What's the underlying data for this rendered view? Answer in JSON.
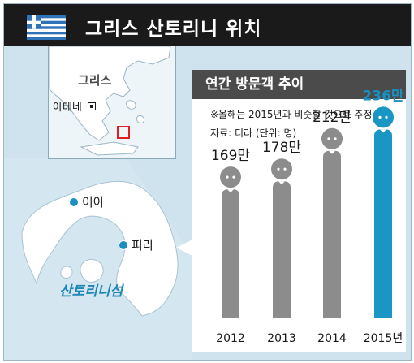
{
  "header": {
    "title": "그리스 산토리니 위치",
    "flag": "greece-flag-icon"
  },
  "locator_map": {
    "country_label": "그리스",
    "capital_label": "아테네"
  },
  "island_map": {
    "island_name": "산토리니섬",
    "towns": [
      {
        "label": "이아"
      },
      {
        "label": "피라"
      }
    ]
  },
  "colors": {
    "highlight": "#1a96c4",
    "bar": "#8c8c8c",
    "label_highlight": "#1a8fc0"
  },
  "chart_data": {
    "type": "bar",
    "title": "연간 방문객 추이",
    "note": "※올해는 2015년과 비슷할 것으로 추정",
    "source": "자료: 티라 (단위: 명)",
    "categories": [
      "2012",
      "2013",
      "2014",
      "2015년"
    ],
    "values": [
      169,
      178,
      212,
      236
    ],
    "value_labels": [
      "169만",
      "178만",
      "212만",
      "236만"
    ],
    "highlight_index": 3,
    "xlabel": "",
    "ylabel": ""
  }
}
